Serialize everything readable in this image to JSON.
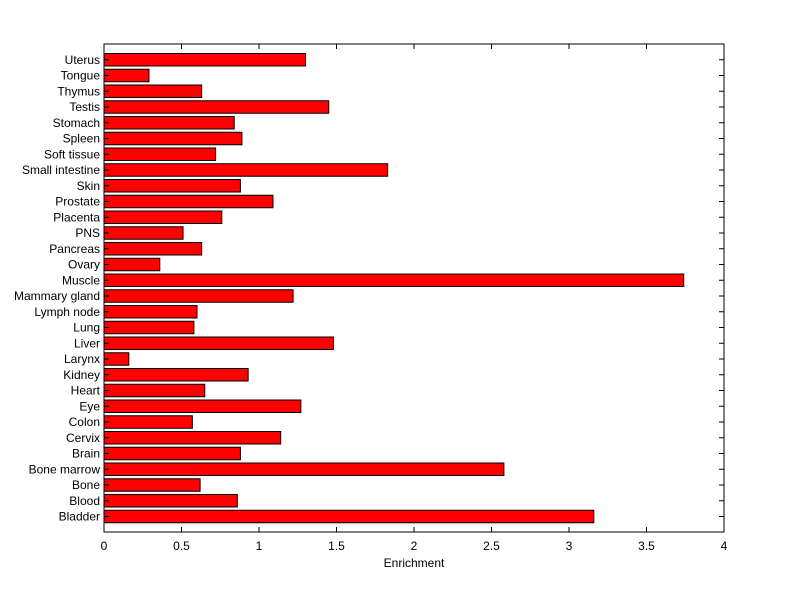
{
  "chart_data": {
    "type": "bar",
    "orientation": "horizontal",
    "title": "",
    "xlabel": "Enrichment",
    "ylabel": "",
    "xlim": [
      0,
      4
    ],
    "x_ticks": [
      0,
      0.5,
      1,
      1.5,
      2,
      2.5,
      3,
      3.5,
      4
    ],
    "x_tick_labels": [
      "0",
      "0.5",
      "1",
      "1.5",
      "2",
      "2.5",
      "3",
      "3.5",
      "4"
    ],
    "grid": false,
    "legend": "none",
    "bar_color": "#ff0000",
    "edge_color": "#000000",
    "categories": [
      "Bladder",
      "Blood",
      "Bone",
      "Bone marrow",
      "Brain",
      "Cervix",
      "Colon",
      "Eye",
      "Heart",
      "Kidney",
      "Larynx",
      "Liver",
      "Lung",
      "Lymph node",
      "Mammary gland",
      "Muscle",
      "Ovary",
      "Pancreas",
      "PNS",
      "Placenta",
      "Prostate",
      "Skin",
      "Small intestine",
      "Soft tissue",
      "Spleen",
      "Stomach",
      "Testis",
      "Thymus",
      "Tongue",
      "Uterus"
    ],
    "values": [
      3.16,
      0.86,
      0.62,
      2.58,
      0.88,
      1.14,
      0.57,
      1.27,
      0.65,
      0.93,
      0.16,
      1.48,
      0.58,
      0.6,
      1.22,
      3.74,
      0.36,
      0.63,
      0.51,
      0.76,
      1.09,
      0.88,
      1.83,
      0.72,
      0.89,
      0.84,
      1.45,
      0.63,
      0.29,
      1.3
    ]
  }
}
